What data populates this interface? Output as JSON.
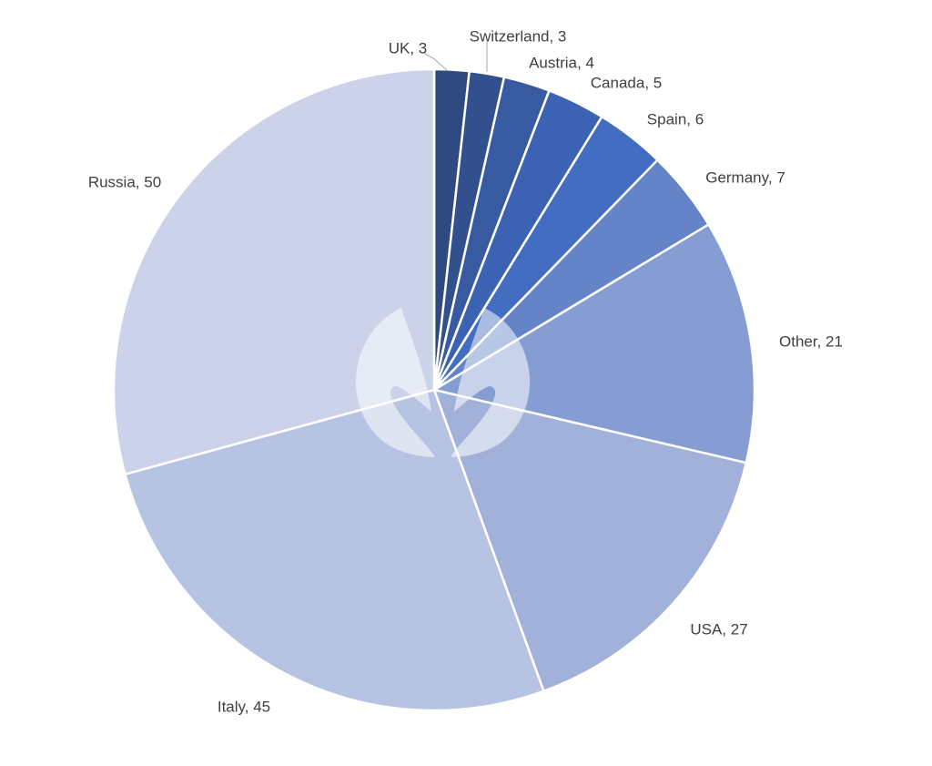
{
  "chart_data": {
    "type": "pie",
    "title": "",
    "start_angle_deg": 0,
    "direction": "clockwise",
    "slices": [
      {
        "label": "UK",
        "value": 3,
        "display": "UK, 3",
        "color": "#2f4a80"
      },
      {
        "label": "Switzerland",
        "value": 3,
        "display": "Switzerland, 3",
        "color": "#33508e"
      },
      {
        "label": "Austria",
        "value": 4,
        "display": "Austria, 4",
        "color": "#375aa1"
      },
      {
        "label": "Canada",
        "value": 5,
        "display": "Canada, 5",
        "color": "#3c63b3"
      },
      {
        "label": "Spain",
        "value": 6,
        "display": "Spain, 6",
        "color": "#426dc0"
      },
      {
        "label": "Germany",
        "value": 7,
        "display": "Germany, 7",
        "color": "#6584c8"
      },
      {
        "label": "Other",
        "value": 21,
        "display": "Other, 21",
        "color": "#869dd3"
      },
      {
        "label": "USA",
        "value": 27,
        "display": "USA, 27",
        "color": "#a2b1da"
      },
      {
        "label": "Italy",
        "value": 45,
        "display": "Italy, 45",
        "color": "#b7c3e2"
      },
      {
        "label": "Russia",
        "value": 50,
        "display": "Russia, 50",
        "color": "#cbd2ea"
      }
    ]
  }
}
